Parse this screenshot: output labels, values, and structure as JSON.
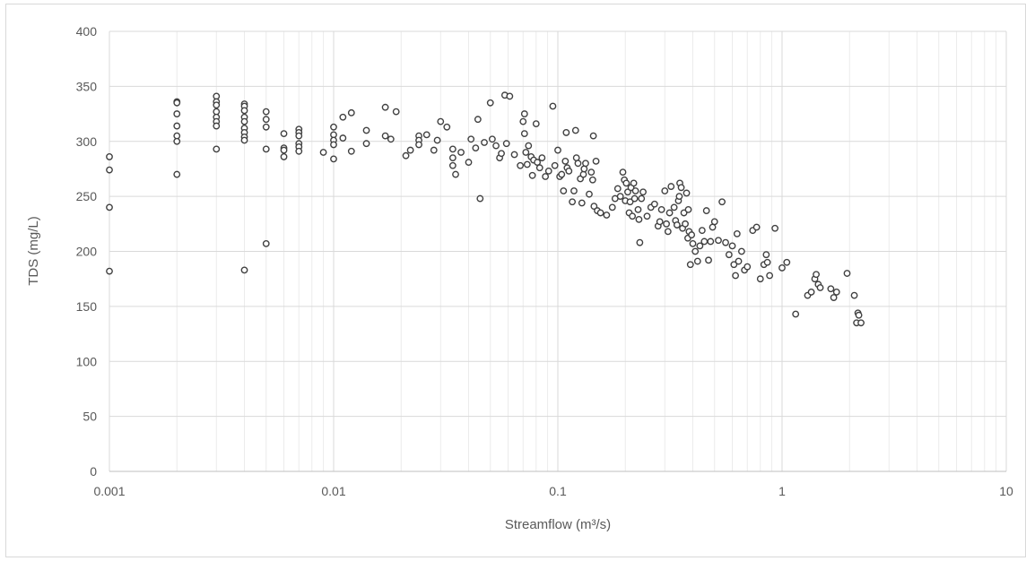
{
  "chart_data": {
    "type": "scatter",
    "title": "",
    "xlabel": "Streamflow (m³/s)",
    "ylabel": "TDS (mg/L)",
    "x_scale": "log",
    "xlim": [
      0.001,
      10
    ],
    "ylim": [
      0,
      400
    ],
    "x_ticks": [
      "0.001",
      "0.01",
      "0.1",
      "1",
      "10"
    ],
    "y_ticks": [
      "0",
      "50",
      "100",
      "150",
      "200",
      "250",
      "300",
      "350",
      "400"
    ],
    "grid": true,
    "legend": "none",
    "marker_edge_color": "#404040",
    "series": [
      {
        "points": [
          [
            0.001,
            286
          ],
          [
            0.001,
            274
          ],
          [
            0.001,
            240
          ],
          [
            0.001,
            182
          ],
          [
            0.002,
            336
          ],
          [
            0.002,
            335
          ],
          [
            0.002,
            325
          ],
          [
            0.002,
            314
          ],
          [
            0.002,
            305
          ],
          [
            0.002,
            300
          ],
          [
            0.002,
            270
          ],
          [
            0.003,
            341
          ],
          [
            0.003,
            336
          ],
          [
            0.003,
            333
          ],
          [
            0.003,
            327
          ],
          [
            0.003,
            322
          ],
          [
            0.003,
            318
          ],
          [
            0.003,
            314
          ],
          [
            0.003,
            293
          ],
          [
            0.004,
            334
          ],
          [
            0.004,
            332
          ],
          [
            0.004,
            328
          ],
          [
            0.004,
            322
          ],
          [
            0.004,
            318
          ],
          [
            0.004,
            312
          ],
          [
            0.004,
            308
          ],
          [
            0.004,
            304
          ],
          [
            0.004,
            301
          ],
          [
            0.004,
            183
          ],
          [
            0.005,
            327
          ],
          [
            0.005,
            320
          ],
          [
            0.005,
            313
          ],
          [
            0.005,
            293
          ],
          [
            0.005,
            207
          ],
          [
            0.006,
            307
          ],
          [
            0.006,
            294
          ],
          [
            0.006,
            292
          ],
          [
            0.006,
            286
          ],
          [
            0.007,
            311
          ],
          [
            0.007,
            308
          ],
          [
            0.007,
            305
          ],
          [
            0.007,
            298
          ],
          [
            0.007,
            295
          ],
          [
            0.007,
            291
          ],
          [
            0.009,
            290
          ],
          [
            0.01,
            313
          ],
          [
            0.01,
            306
          ],
          [
            0.01,
            301
          ],
          [
            0.01,
            297
          ],
          [
            0.01,
            284
          ],
          [
            0.011,
            322
          ],
          [
            0.011,
            303
          ],
          [
            0.012,
            326
          ],
          [
            0.012,
            291
          ],
          [
            0.014,
            310
          ],
          [
            0.014,
            298
          ],
          [
            0.017,
            331
          ],
          [
            0.017,
            305
          ],
          [
            0.018,
            302
          ],
          [
            0.019,
            327
          ],
          [
            0.021,
            287
          ],
          [
            0.022,
            292
          ],
          [
            0.024,
            305
          ],
          [
            0.024,
            301
          ],
          [
            0.024,
            297
          ],
          [
            0.026,
            306
          ],
          [
            0.028,
            292
          ],
          [
            0.029,
            301
          ],
          [
            0.03,
            318
          ],
          [
            0.032,
            313
          ],
          [
            0.034,
            293
          ],
          [
            0.034,
            285
          ],
          [
            0.034,
            278
          ],
          [
            0.035,
            270
          ],
          [
            0.037,
            290
          ],
          [
            0.04,
            281
          ],
          [
            0.041,
            302
          ],
          [
            0.043,
            294
          ],
          [
            0.044,
            320
          ],
          [
            0.045,
            248
          ],
          [
            0.047,
            299
          ],
          [
            0.05,
            335
          ],
          [
            0.051,
            302
          ],
          [
            0.053,
            296
          ],
          [
            0.055,
            285
          ],
          [
            0.056,
            289
          ],
          [
            0.058,
            342
          ],
          [
            0.059,
            298
          ],
          [
            0.061,
            341
          ],
          [
            0.064,
            288
          ],
          [
            0.068,
            278
          ],
          [
            0.07,
            318
          ],
          [
            0.071,
            325
          ],
          [
            0.071,
            307
          ],
          [
            0.072,
            290
          ],
          [
            0.073,
            279
          ],
          [
            0.074,
            296
          ],
          [
            0.076,
            286
          ],
          [
            0.077,
            269
          ],
          [
            0.078,
            283
          ],
          [
            0.08,
            316
          ],
          [
            0.081,
            281
          ],
          [
            0.083,
            276
          ],
          [
            0.085,
            285
          ],
          [
            0.088,
            268
          ],
          [
            0.091,
            273
          ],
          [
            0.095,
            332
          ],
          [
            0.097,
            278
          ],
          [
            0.1,
            292
          ],
          [
            0.102,
            268
          ],
          [
            0.104,
            270
          ],
          [
            0.106,
            255
          ],
          [
            0.108,
            282
          ],
          [
            0.109,
            308
          ],
          [
            0.11,
            276
          ],
          [
            0.112,
            273
          ],
          [
            0.116,
            245
          ],
          [
            0.118,
            255
          ],
          [
            0.12,
            310
          ],
          [
            0.121,
            285
          ],
          [
            0.123,
            280
          ],
          [
            0.126,
            266
          ],
          [
            0.128,
            244
          ],
          [
            0.13,
            270
          ],
          [
            0.131,
            275
          ],
          [
            0.133,
            280
          ],
          [
            0.138,
            252
          ],
          [
            0.141,
            272
          ],
          [
            0.143,
            265
          ],
          [
            0.144,
            305
          ],
          [
            0.145,
            241
          ],
          [
            0.148,
            282
          ],
          [
            0.15,
            237
          ],
          [
            0.155,
            235
          ],
          [
            0.165,
            233
          ],
          [
            0.175,
            240
          ],
          [
            0.18,
            248
          ],
          [
            0.185,
            257
          ],
          [
            0.19,
            250
          ],
          [
            0.195,
            272
          ],
          [
            0.198,
            265
          ],
          [
            0.2,
            246
          ],
          [
            0.202,
            262
          ],
          [
            0.205,
            254
          ],
          [
            0.208,
            235
          ],
          [
            0.21,
            245
          ],
          [
            0.212,
            258
          ],
          [
            0.215,
            232
          ],
          [
            0.218,
            262
          ],
          [
            0.22,
            248
          ],
          [
            0.222,
            255
          ],
          [
            0.228,
            238
          ],
          [
            0.23,
            229
          ],
          [
            0.232,
            208
          ],
          [
            0.236,
            248
          ],
          [
            0.24,
            254
          ],
          [
            0.25,
            232
          ],
          [
            0.26,
            240
          ],
          [
            0.27,
            243
          ],
          [
            0.28,
            223
          ],
          [
            0.285,
            227
          ],
          [
            0.29,
            238
          ],
          [
            0.3,
            255
          ],
          [
            0.305,
            225
          ],
          [
            0.31,
            218
          ],
          [
            0.315,
            235
          ],
          [
            0.32,
            259
          ],
          [
            0.33,
            240
          ],
          [
            0.335,
            228
          ],
          [
            0.34,
            224
          ],
          [
            0.345,
            246
          ],
          [
            0.348,
            250
          ],
          [
            0.35,
            262
          ],
          [
            0.355,
            258
          ],
          [
            0.36,
            221
          ],
          [
            0.365,
            235
          ],
          [
            0.37,
            225
          ],
          [
            0.375,
            253
          ],
          [
            0.38,
            212
          ],
          [
            0.382,
            238
          ],
          [
            0.385,
            218
          ],
          [
            0.39,
            188
          ],
          [
            0.395,
            215
          ],
          [
            0.4,
            207
          ],
          [
            0.41,
            200
          ],
          [
            0.42,
            191
          ],
          [
            0.43,
            205
          ],
          [
            0.44,
            219
          ],
          [
            0.45,
            209
          ],
          [
            0.46,
            237
          ],
          [
            0.47,
            192
          ],
          [
            0.48,
            209
          ],
          [
            0.49,
            222
          ],
          [
            0.5,
            227
          ],
          [
            0.52,
            210
          ],
          [
            0.54,
            245
          ],
          [
            0.56,
            208
          ],
          [
            0.58,
            197
          ],
          [
            0.6,
            205
          ],
          [
            0.61,
            188
          ],
          [
            0.62,
            178
          ],
          [
            0.63,
            216
          ],
          [
            0.64,
            191
          ],
          [
            0.66,
            200
          ],
          [
            0.68,
            183
          ],
          [
            0.7,
            186
          ],
          [
            0.74,
            219
          ],
          [
            0.77,
            222
          ],
          [
            0.8,
            175
          ],
          [
            0.83,
            188
          ],
          [
            0.85,
            197
          ],
          [
            0.86,
            190
          ],
          [
            0.88,
            178
          ],
          [
            0.93,
            221
          ],
          [
            1.0,
            185
          ],
          [
            1.05,
            190
          ],
          [
            1.15,
            143
          ],
          [
            1.3,
            160
          ],
          [
            1.35,
            163
          ],
          [
            1.4,
            175
          ],
          [
            1.42,
            179
          ],
          [
            1.45,
            170
          ],
          [
            1.48,
            167
          ],
          [
            1.65,
            166
          ],
          [
            1.7,
            158
          ],
          [
            1.75,
            163
          ],
          [
            1.95,
            180
          ],
          [
            2.1,
            160
          ],
          [
            2.15,
            135
          ],
          [
            2.18,
            144
          ],
          [
            2.2,
            142
          ],
          [
            2.25,
            135
          ]
        ]
      }
    ]
  }
}
